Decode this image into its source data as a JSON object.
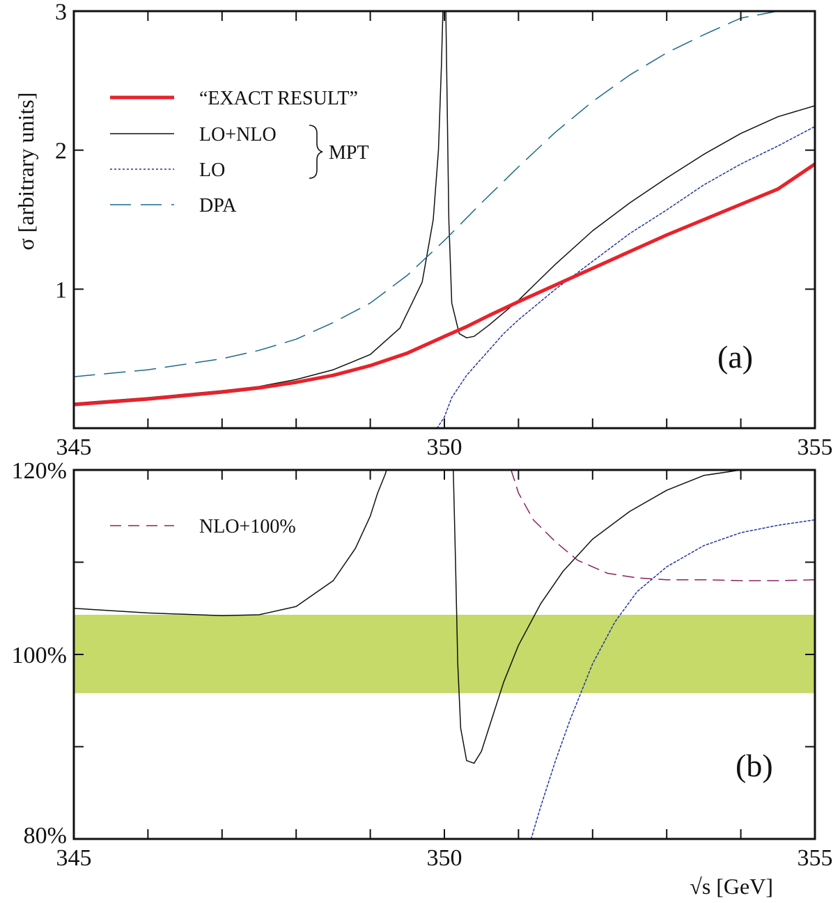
{
  "chart_data": [
    {
      "panel": "(a)",
      "type": "line",
      "ylabel": "σ [arbitrary units]",
      "xlim": [
        345,
        355
      ],
      "ylim": [
        0,
        3
      ],
      "xticks": [
        {
          "value": 345,
          "label": "345"
        },
        {
          "value": 350,
          "label": "350"
        },
        {
          "value": 355,
          "label": "355"
        }
      ],
      "yticks": [
        {
          "value": 1,
          "label": "1"
        },
        {
          "value": 2,
          "label": "2"
        },
        {
          "value": 3,
          "label": "3"
        }
      ],
      "legend": {
        "position": "top-left",
        "group_label": "MPT",
        "entries": [
          {
            "label": "“EXACT RESULT”",
            "series": 0
          },
          {
            "label": "LO+NLO",
            "series": 1
          },
          {
            "label": "LO",
            "series": 2
          },
          {
            "label": "DPA",
            "series": 3
          }
        ]
      },
      "series": [
        {
          "name": "“EXACT RESULT”",
          "color": "#e8222b",
          "style": "solid-thick",
          "x": [
            345,
            346,
            347,
            347.5,
            348,
            348.5,
            349,
            349.5,
            350,
            350.3,
            350.6,
            351,
            351.5,
            352,
            352.5,
            353,
            353.5,
            354,
            354.5,
            355
          ],
          "y": [
            0.17,
            0.21,
            0.26,
            0.29,
            0.33,
            0.38,
            0.45,
            0.54,
            0.66,
            0.73,
            0.81,
            0.91,
            1.03,
            1.15,
            1.27,
            1.39,
            1.5,
            1.61,
            1.72,
            1.9
          ]
        },
        {
          "name": "LO+NLO",
          "color": "#111111",
          "style": "solid-thin",
          "x": [
            345,
            346,
            347,
            347.5,
            348,
            348.5,
            349,
            349.4,
            349.7,
            349.85,
            349.92,
            349.96,
            349.98,
            350.02,
            350.06,
            350.1,
            350.2,
            350.3,
            350.4,
            350.6,
            351,
            351.5,
            352,
            352.5,
            353,
            353.5,
            354,
            354.5,
            355
          ],
          "y": [
            0.18,
            0.22,
            0.27,
            0.3,
            0.35,
            0.42,
            0.53,
            0.72,
            1.05,
            1.5,
            2.0,
            2.6,
            3.0,
            3.0,
            1.5,
            0.9,
            0.68,
            0.65,
            0.66,
            0.74,
            0.92,
            1.18,
            1.42,
            1.62,
            1.8,
            1.97,
            2.12,
            2.24,
            2.32
          ]
        },
        {
          "name": "LO",
          "color": "#2233aa",
          "style": "dotted",
          "x": [
            349.9,
            350.0,
            350.1,
            350.3,
            350.5,
            350.8,
            351,
            351.5,
            352,
            352.5,
            353,
            353.5,
            354,
            354.5,
            355
          ],
          "y": [
            0.0,
            0.08,
            0.22,
            0.38,
            0.5,
            0.68,
            0.78,
            1.0,
            1.2,
            1.4,
            1.57,
            1.75,
            1.9,
            2.03,
            2.17
          ]
        },
        {
          "name": "DPA",
          "color": "#1a6a8a",
          "style": "long-dash",
          "x": [
            345,
            346,
            347,
            347.5,
            348,
            348.5,
            349,
            349.5,
            350,
            350.5,
            351,
            351.5,
            352,
            352.5,
            353,
            353.5,
            354,
            354.5
          ],
          "y": [
            0.37,
            0.42,
            0.5,
            0.56,
            0.64,
            0.76,
            0.9,
            1.1,
            1.35,
            1.62,
            1.88,
            2.13,
            2.35,
            2.54,
            2.7,
            2.83,
            2.95,
            3.0
          ]
        }
      ]
    },
    {
      "panel": "(b)",
      "type": "line",
      "xlabel": "√s [GeV]",
      "xlim": [
        345,
        355
      ],
      "ylim": [
        80,
        120
      ],
      "xticks": [
        {
          "value": 345,
          "label": "345"
        },
        {
          "value": 350,
          "label": "350"
        },
        {
          "value": 355,
          "label": "355"
        }
      ],
      "yticks": [
        {
          "value": 80,
          "label": "80%"
        },
        {
          "value": 100,
          "label": "100%"
        },
        {
          "value": 120,
          "label": "120%"
        }
      ],
      "band": {
        "ymin": 95.8,
        "ymax": 104.3,
        "color": "#c5da68"
      },
      "legend": {
        "position": "top-left",
        "entries": [
          {
            "label": "NLO+100%",
            "series": 2
          }
        ]
      },
      "series": [
        {
          "name": "LO+NLO",
          "color": "#111111",
          "style": "solid-thin",
          "x": [
            345,
            346,
            347,
            347.5,
            348,
            348.5,
            348.8,
            349,
            349.1,
            349.2,
            349.22
          ],
          "y": [
            105.0,
            104.5,
            104.2,
            104.3,
            105.2,
            108.0,
            111.5,
            115.0,
            117.5,
            119.5,
            120.0
          ]
        },
        {
          "name": "LO+NLO",
          "color": "#111111",
          "style": "solid-thin",
          "x": [
            350.12,
            350.15,
            350.18,
            350.22,
            350.3,
            350.4,
            350.5,
            350.6,
            350.8,
            351,
            351.3,
            351.6,
            352,
            352.5,
            353,
            353.5,
            354,
            354.5,
            355
          ],
          "y": [
            120.0,
            110.0,
            99.0,
            92.0,
            88.5,
            88.2,
            89.5,
            92.0,
            97.0,
            101.0,
            105.5,
            109.0,
            112.5,
            115.5,
            117.8,
            119.4,
            120.3,
            120.8,
            121.0
          ]
        },
        {
          "name": "NLO+100%",
          "color": "#8b2060",
          "style": "dashed",
          "x": [
            350.9,
            351,
            351.2,
            351.5,
            351.8,
            352.2,
            352.6,
            353,
            353.5,
            354,
            354.5,
            355
          ],
          "y": [
            120.0,
            117.5,
            114.6,
            112.2,
            110.2,
            108.8,
            108.3,
            108.1,
            108.1,
            108.0,
            108.0,
            108.1
          ]
        },
        {
          "name": "LO",
          "color": "#2233aa",
          "style": "dotted",
          "x": [
            351.17,
            351.3,
            351.5,
            351.7,
            352,
            352.3,
            352.6,
            353,
            353.5,
            354,
            354.5,
            355
          ],
          "y": [
            80.0,
            83.5,
            88.5,
            93.0,
            99.0,
            103.5,
            106.8,
            109.5,
            111.8,
            113.2,
            114.0,
            114.6
          ]
        }
      ]
    }
  ]
}
